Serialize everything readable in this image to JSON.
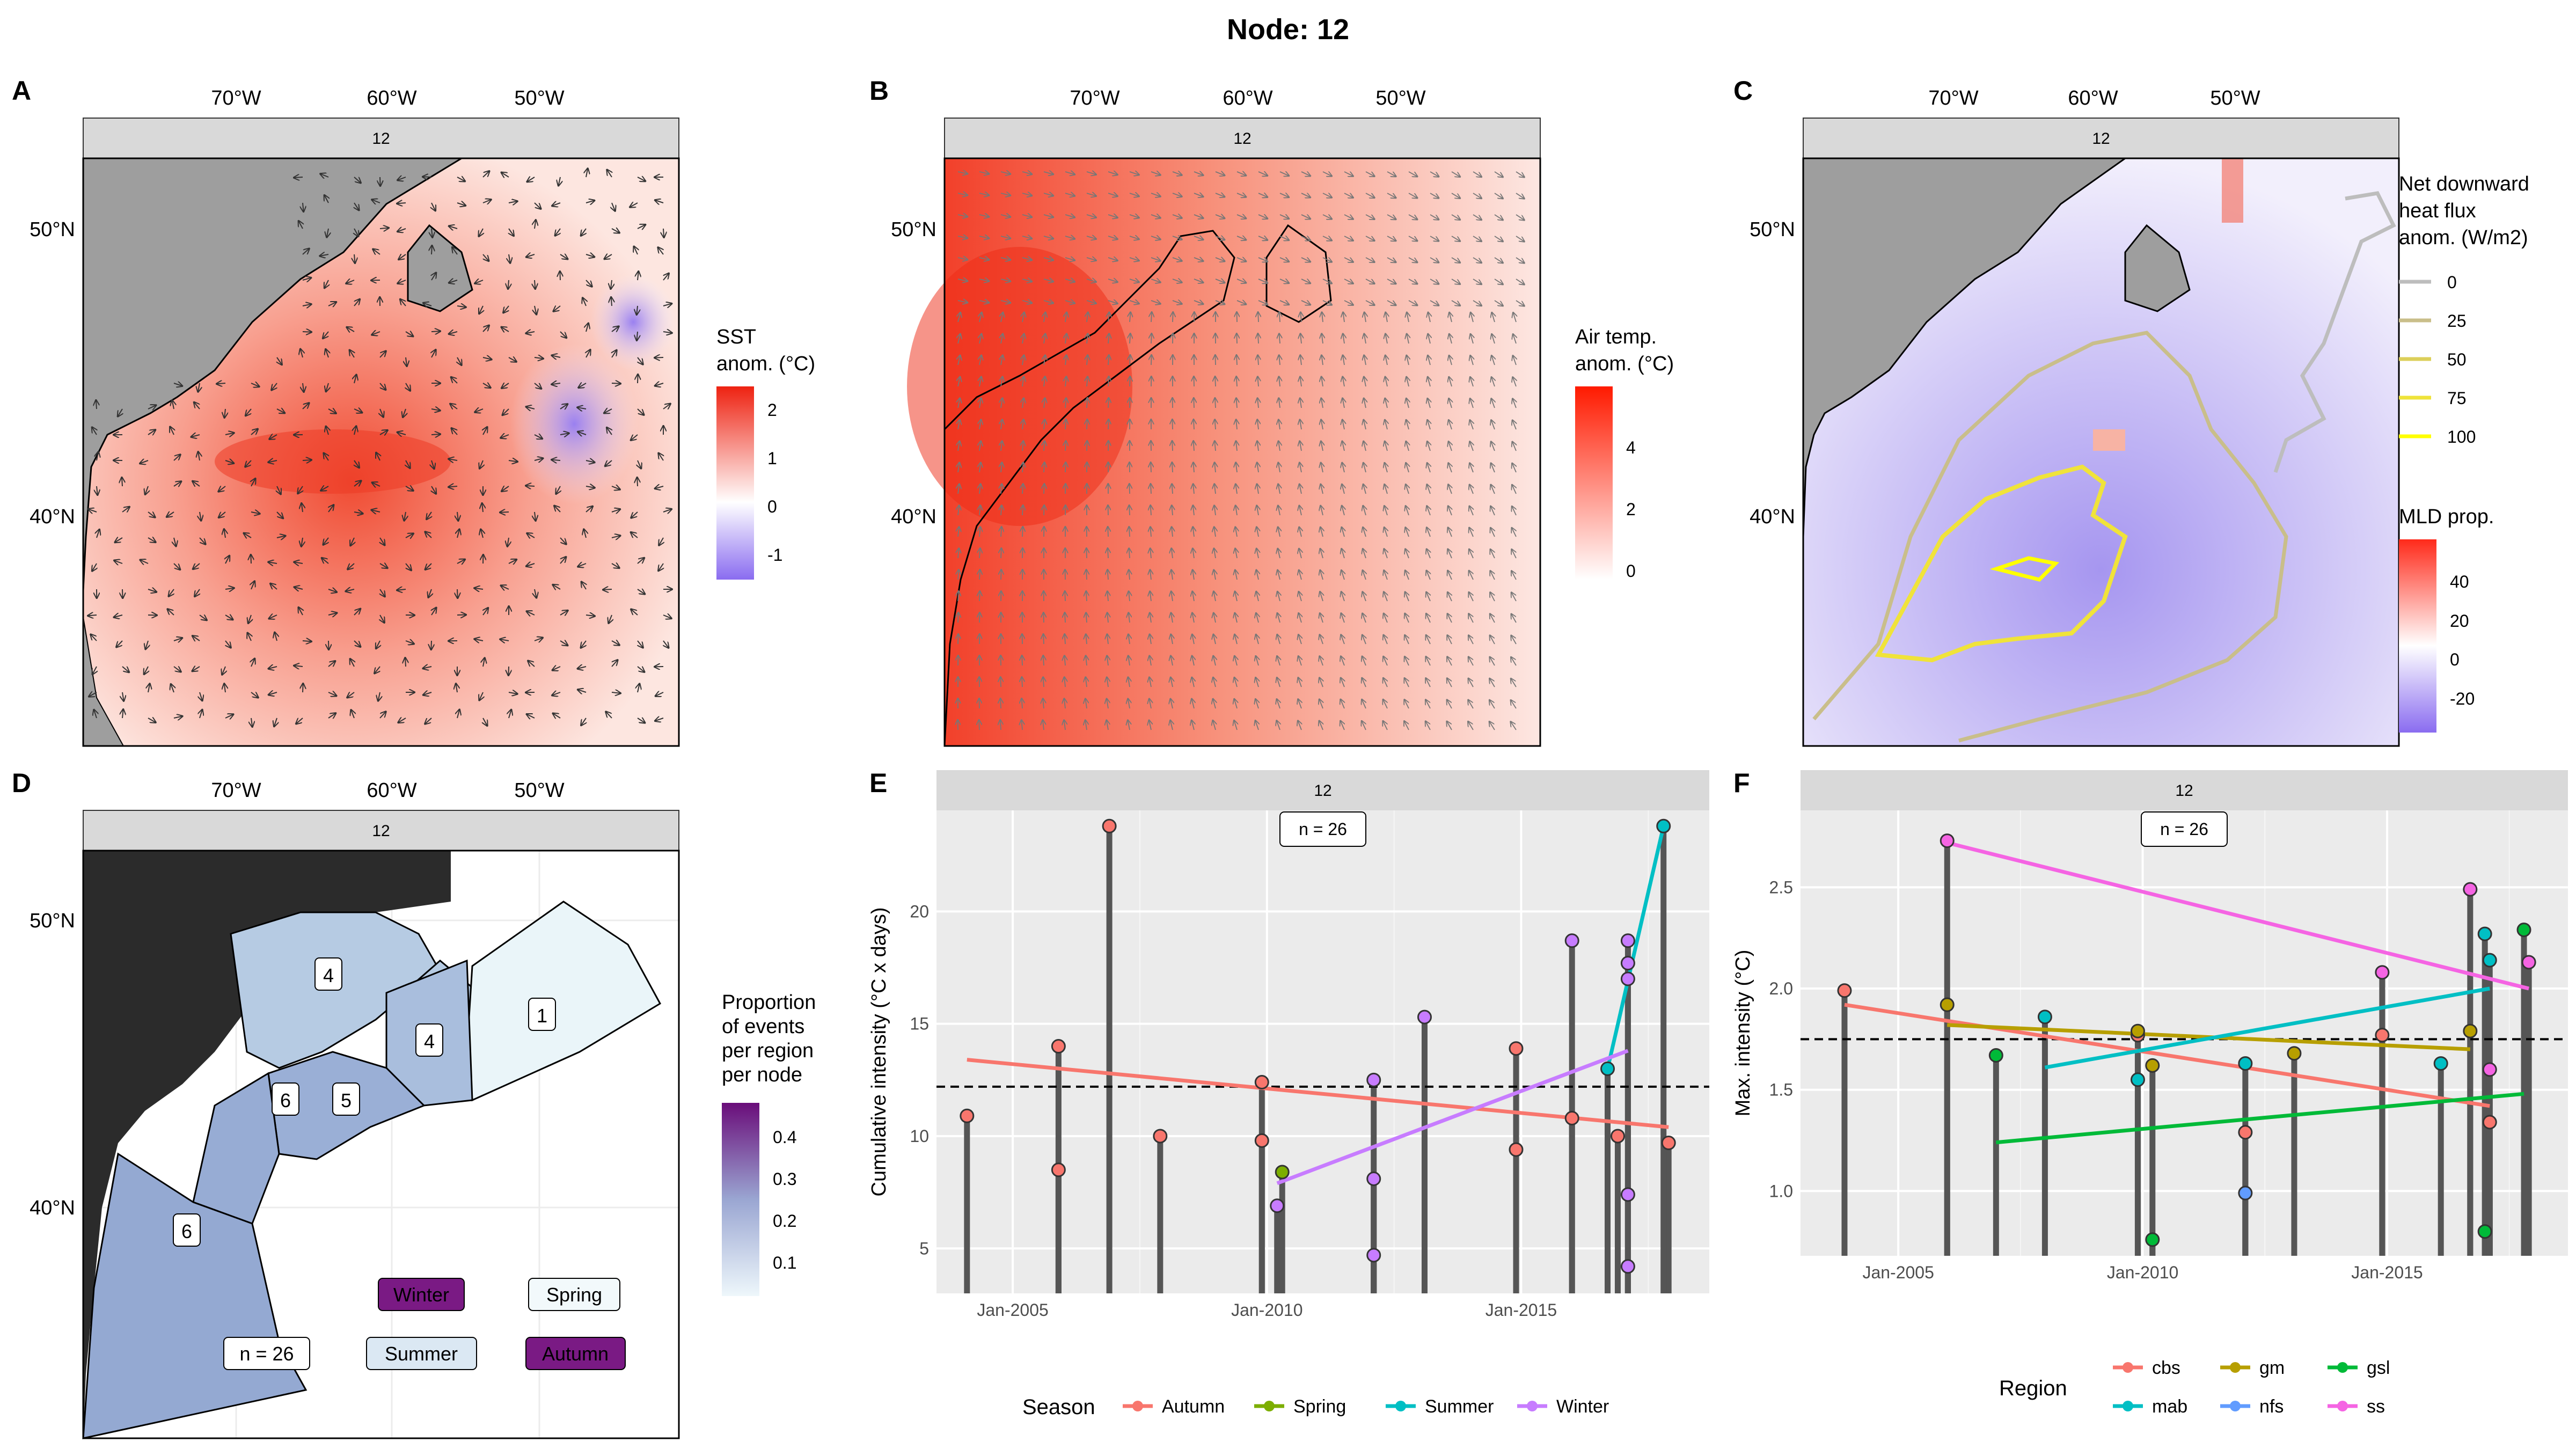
{
  "title": "Node: 12",
  "panel_letters": [
    "A",
    "B",
    "C",
    "D",
    "E",
    "F"
  ],
  "facet_label": "12",
  "map_axes": {
    "lon_ticks": [
      "70°W",
      "60°W",
      "50°W"
    ],
    "lat_ticks": [
      "50°N",
      "40°N"
    ]
  },
  "panel_a": {
    "legend_title": [
      "SST",
      "anom. (°C)"
    ],
    "legend_ticks": [
      "2",
      "1",
      "0",
      "-1"
    ],
    "colors": {
      "low": "#8a6cf0",
      "mid": "#ffffff",
      "high": "#ee2211"
    }
  },
  "panel_b": {
    "legend_title": [
      "Air temp.",
      "anom. (°C)"
    ],
    "legend_ticks": [
      "4",
      "2",
      "0"
    ],
    "colors": {
      "low": "#ffffff",
      "high": "#ee2211"
    }
  },
  "panel_c": {
    "contour_legend_title": [
      "Net downward",
      "heat flux",
      "anom. (W/m2)"
    ],
    "contour_levels": [
      "0",
      "25",
      "50",
      "75",
      "100"
    ],
    "contour_colors": [
      "#bdbdbd",
      "#c9be8a",
      "#dccf5a",
      "#efe33a",
      "#ffff00"
    ],
    "fill_legend_title": "MLD prop.",
    "fill_legend_ticks": [
      "40",
      "20",
      "0",
      "-20"
    ]
  },
  "panel_d": {
    "legend_title": [
      "Proportion",
      "of events",
      "per region",
      "per node"
    ],
    "legend_ticks": [
      "0.4",
      "0.3",
      "0.2",
      "0.1"
    ],
    "region_counts": [
      "4",
      "4",
      "1",
      "6",
      "5",
      "6"
    ],
    "n_label": "n = 26",
    "season_labels": {
      "winter": "Winter",
      "spring": "Spring",
      "summer": "Summer",
      "autumn": "Autumn"
    }
  },
  "panel_e": {
    "chart_data": {
      "type": "scatter",
      "ylabel": "Cumulative intensity (°C x days)",
      "x_ticks": [
        "Jan-2005",
        "Jan-2010",
        "Jan-2015"
      ],
      "y_ticks": [
        "5",
        "10",
        "15",
        "20"
      ],
      "ylim": [
        3,
        24.5
      ],
      "xlim": [
        2003.5,
        2018.7
      ],
      "n_label": "n = 26",
      "mean_line": 12.2,
      "legend_title": "Season",
      "series": [
        {
          "name": "Autumn",
          "color": "#f8766d",
          "points": [
            [
              2004.1,
              10.9
            ],
            [
              2005.9,
              14.0
            ],
            [
              2005.9,
              8.5
            ],
            [
              2006.9,
              23.8
            ],
            [
              2007.9,
              10.0
            ],
            [
              2009.9,
              12.4
            ],
            [
              2009.9,
              9.8
            ],
            [
              2014.9,
              13.9
            ],
            [
              2014.9,
              9.4
            ],
            [
              2016.0,
              10.8
            ],
            [
              2016.9,
              10.0
            ],
            [
              2017.9,
              9.7
            ]
          ],
          "trend": [
            [
              2004.1,
              13.4
            ],
            [
              2017.9,
              10.4
            ]
          ]
        },
        {
          "name": "Spring",
          "color": "#7cae00",
          "points": [
            [
              2010.3,
              8.4
            ]
          ],
          "trend": []
        },
        {
          "name": "Summer",
          "color": "#00bfc4",
          "points": [
            [
              2016.7,
              13.0
            ],
            [
              2017.8,
              23.8
            ]
          ],
          "trend": [
            [
              2016.7,
              13.0
            ],
            [
              2017.8,
              23.8
            ]
          ]
        },
        {
          "name": "Winter",
          "color": "#c77cff",
          "points": [
            [
              2010.2,
              6.9
            ],
            [
              2012.1,
              12.5
            ],
            [
              2012.1,
              8.1
            ],
            [
              2012.1,
              4.7
            ],
            [
              2013.1,
              15.3
            ],
            [
              2016.0,
              18.7
            ],
            [
              2017.1,
              18.7
            ],
            [
              2017.1,
              17.7
            ],
            [
              2017.1,
              17.0
            ],
            [
              2017.1,
              7.4
            ],
            [
              2017.1,
              4.2
            ]
          ],
          "trend": [
            [
              2010.2,
              7.9
            ],
            [
              2017.1,
              13.8
            ]
          ]
        }
      ]
    }
  },
  "panel_f": {
    "chart_data": {
      "type": "scatter",
      "ylabel": "Max. intensity (°C)",
      "x_ticks": [
        "Jan-2005",
        "Jan-2010",
        "Jan-2015"
      ],
      "y_ticks": [
        "1.0",
        "1.5",
        "2.0",
        "2.5"
      ],
      "ylim": [
        0.68,
        2.88
      ],
      "xlim": [
        2003.0,
        2018.7
      ],
      "n_label": "n = 26",
      "mean_line": 1.75,
      "legend_title": "Region",
      "series": [
        {
          "name": "cbs",
          "color": "#f8766d",
          "points": [
            [
              2003.9,
              1.99
            ],
            [
              2009.9,
              1.77
            ],
            [
              2012.1,
              1.29
            ],
            [
              2014.9,
              1.77
            ],
            [
              2017.1,
              1.34
            ]
          ],
          "trend": [
            [
              2003.9,
              1.92
            ],
            [
              2017.1,
              1.42
            ]
          ]
        },
        {
          "name": "gm",
          "color": "#b79f00",
          "points": [
            [
              2006.0,
              1.92
            ],
            [
              2009.9,
              1.79
            ],
            [
              2010.2,
              1.62
            ],
            [
              2013.1,
              1.68
            ],
            [
              2016.7,
              1.79
            ]
          ],
          "trend": [
            [
              2006.0,
              1.82
            ],
            [
              2016.7,
              1.7
            ]
          ]
        },
        {
          "name": "gsl",
          "color": "#00ba38",
          "points": [
            [
              2007.0,
              1.67
            ],
            [
              2010.2,
              0.76
            ],
            [
              2017.0,
              0.8
            ],
            [
              2017.8,
              2.29
            ]
          ],
          "trend": [
            [
              2007.0,
              1.24
            ],
            [
              2017.8,
              1.48
            ]
          ]
        },
        {
          "name": "mab",
          "color": "#00bfc4",
          "points": [
            [
              2008.0,
              1.86
            ],
            [
              2009.9,
              1.55
            ],
            [
              2012.1,
              1.63
            ],
            [
              2016.1,
              1.63
            ],
            [
              2017.0,
              2.27
            ],
            [
              2017.1,
              2.14
            ]
          ],
          "trend": [
            [
              2008.0,
              1.61
            ],
            [
              2017.1,
              2.0
            ]
          ]
        },
        {
          "name": "nfs",
          "color": "#619cff",
          "points": [
            [
              2012.1,
              0.99
            ]
          ],
          "trend": []
        },
        {
          "name": "ss",
          "color": "#f564e3",
          "points": [
            [
              2006.0,
              2.73
            ],
            [
              2014.9,
              2.08
            ],
            [
              2016.7,
              2.49
            ],
            [
              2017.1,
              1.6
            ],
            [
              2017.9,
              2.13
            ]
          ],
          "trend": [
            [
              2006.0,
              2.72
            ],
            [
              2017.9,
              2.0
            ]
          ]
        }
      ]
    }
  }
}
